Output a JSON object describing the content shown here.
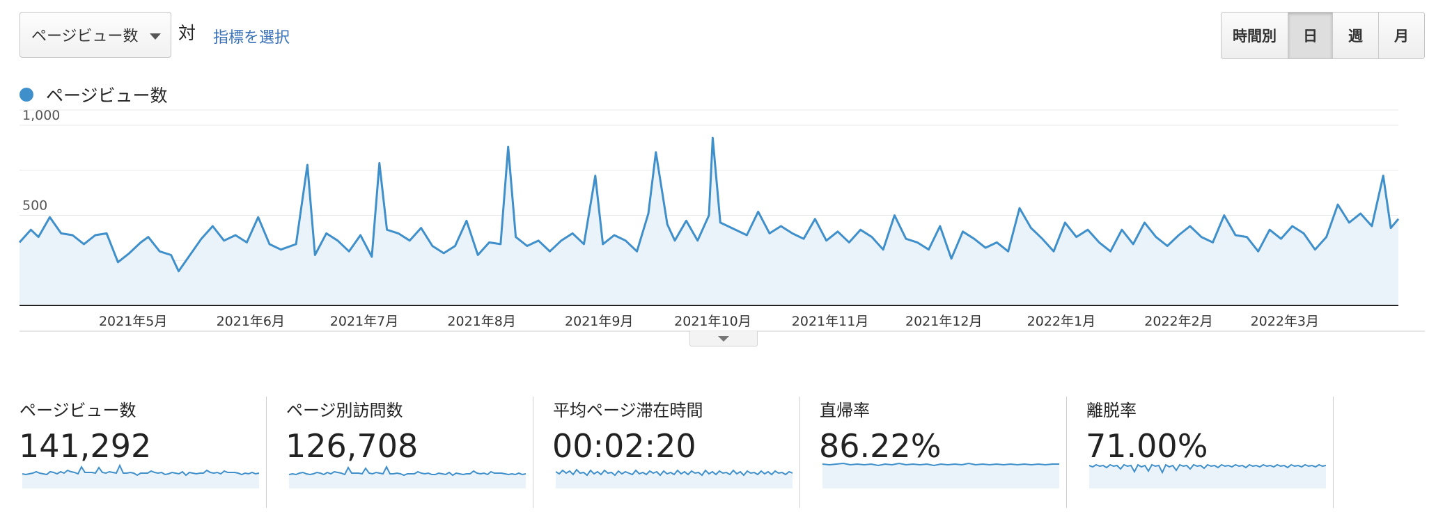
{
  "toolbar": {
    "metric_selector": {
      "value": "ページビュー数"
    },
    "versus_label": "対",
    "select_metric_link": "指標を選択",
    "granularity": [
      {
        "label": "時間別",
        "active": false
      },
      {
        "label": "日",
        "active": true
      },
      {
        "label": "週",
        "active": false
      },
      {
        "label": "月",
        "active": false
      }
    ]
  },
  "legend": {
    "label": "ページビュー数",
    "color": "#3f8fca"
  },
  "colors": {
    "line": "#3f8fca",
    "fill": "#eaf2fa",
    "grid": "#e8e8e8",
    "axis": "#222222"
  },
  "chart_data": {
    "type": "area",
    "series": [
      {
        "name": "ページビュー数"
      }
    ],
    "granularity": "daily",
    "x_range": [
      "2021-04-01",
      "2022-03-31"
    ],
    "x_tick_labels": [
      "2021年5月",
      "2021年6月",
      "2021年7月",
      "2021年8月",
      "2021年9月",
      "2021年10月",
      "2021年11月",
      "2021年12月",
      "2022年1月",
      "2022年2月",
      "2022年3月"
    ],
    "x_tick_dates": [
      "2021-05-01",
      "2021-06-01",
      "2021-07-01",
      "2021-08-01",
      "2021-09-01",
      "2021-10-01",
      "2021-11-01",
      "2021-12-01",
      "2022-01-01",
      "2022-02-01",
      "2022-03-01"
    ],
    "y_tick_labels": [
      "1,000",
      "500"
    ],
    "y_ticks": [
      1000,
      500
    ],
    "ylim": [
      0,
      1000
    ],
    "grid": true,
    "points": [
      [
        "2021-04-01",
        350
      ],
      [
        "2021-04-04",
        420
      ],
      [
        "2021-04-06",
        380
      ],
      [
        "2021-04-09",
        490
      ],
      [
        "2021-04-12",
        400
      ],
      [
        "2021-04-15",
        390
      ],
      [
        "2021-04-18",
        340
      ],
      [
        "2021-04-21",
        390
      ],
      [
        "2021-04-24",
        400
      ],
      [
        "2021-04-27",
        240
      ],
      [
        "2021-04-30",
        290
      ],
      [
        "2021-05-03",
        350
      ],
      [
        "2021-05-05",
        380
      ],
      [
        "2021-05-08",
        300
      ],
      [
        "2021-05-11",
        280
      ],
      [
        "2021-05-13",
        190
      ],
      [
        "2021-05-16",
        280
      ],
      [
        "2021-05-19",
        370
      ],
      [
        "2021-05-22",
        440
      ],
      [
        "2021-05-25",
        360
      ],
      [
        "2021-05-28",
        390
      ],
      [
        "2021-05-31",
        350
      ],
      [
        "2021-06-03",
        490
      ],
      [
        "2021-06-06",
        340
      ],
      [
        "2021-06-09",
        310
      ],
      [
        "2021-06-13",
        340
      ],
      [
        "2021-06-16",
        780
      ],
      [
        "2021-06-18",
        280
      ],
      [
        "2021-06-21",
        400
      ],
      [
        "2021-06-24",
        360
      ],
      [
        "2021-06-27",
        300
      ],
      [
        "2021-06-30",
        390
      ],
      [
        "2021-07-03",
        270
      ],
      [
        "2021-07-05",
        790
      ],
      [
        "2021-07-07",
        420
      ],
      [
        "2021-07-10",
        400
      ],
      [
        "2021-07-13",
        360
      ],
      [
        "2021-07-16",
        430
      ],
      [
        "2021-07-19",
        330
      ],
      [
        "2021-07-22",
        290
      ],
      [
        "2021-07-25",
        330
      ],
      [
        "2021-07-28",
        470
      ],
      [
        "2021-07-31",
        280
      ],
      [
        "2021-08-03",
        350
      ],
      [
        "2021-08-06",
        340
      ],
      [
        "2021-08-08",
        880
      ],
      [
        "2021-08-10",
        380
      ],
      [
        "2021-08-13",
        330
      ],
      [
        "2021-08-16",
        360
      ],
      [
        "2021-08-19",
        300
      ],
      [
        "2021-08-22",
        360
      ],
      [
        "2021-08-25",
        400
      ],
      [
        "2021-08-28",
        340
      ],
      [
        "2021-08-31",
        720
      ],
      [
        "2021-09-02",
        340
      ],
      [
        "2021-09-05",
        390
      ],
      [
        "2021-09-08",
        360
      ],
      [
        "2021-09-11",
        300
      ],
      [
        "2021-09-14",
        510
      ],
      [
        "2021-09-16",
        850
      ],
      [
        "2021-09-19",
        450
      ],
      [
        "2021-09-21",
        360
      ],
      [
        "2021-09-24",
        470
      ],
      [
        "2021-09-27",
        360
      ],
      [
        "2021-09-30",
        500
      ],
      [
        "2021-10-01",
        930
      ],
      [
        "2021-10-03",
        460
      ],
      [
        "2021-10-06",
        430
      ],
      [
        "2021-10-10",
        390
      ],
      [
        "2021-10-13",
        520
      ],
      [
        "2021-10-16",
        400
      ],
      [
        "2021-10-19",
        440
      ],
      [
        "2021-10-22",
        400
      ],
      [
        "2021-10-25",
        370
      ],
      [
        "2021-10-28",
        480
      ],
      [
        "2021-10-31",
        360
      ],
      [
        "2021-11-03",
        410
      ],
      [
        "2021-11-06",
        350
      ],
      [
        "2021-11-09",
        420
      ],
      [
        "2021-11-12",
        380
      ],
      [
        "2021-11-15",
        310
      ],
      [
        "2021-11-18",
        500
      ],
      [
        "2021-11-21",
        370
      ],
      [
        "2021-11-24",
        350
      ],
      [
        "2021-11-27",
        310
      ],
      [
        "2021-11-30",
        440
      ],
      [
        "2021-12-03",
        260
      ],
      [
        "2021-12-06",
        410
      ],
      [
        "2021-12-09",
        370
      ],
      [
        "2021-12-12",
        320
      ],
      [
        "2021-12-15",
        350
      ],
      [
        "2021-12-18",
        300
      ],
      [
        "2021-12-21",
        540
      ],
      [
        "2021-12-24",
        430
      ],
      [
        "2021-12-27",
        370
      ],
      [
        "2021-12-30",
        300
      ],
      [
        "2022-01-02",
        460
      ],
      [
        "2022-01-05",
        380
      ],
      [
        "2022-01-08",
        420
      ],
      [
        "2022-01-11",
        350
      ],
      [
        "2022-01-14",
        300
      ],
      [
        "2022-01-17",
        420
      ],
      [
        "2022-01-20",
        340
      ],
      [
        "2022-01-23",
        460
      ],
      [
        "2022-01-26",
        380
      ],
      [
        "2022-01-29",
        330
      ],
      [
        "2022-02-01",
        390
      ],
      [
        "2022-02-04",
        440
      ],
      [
        "2022-02-07",
        380
      ],
      [
        "2022-02-10",
        350
      ],
      [
        "2022-02-13",
        500
      ],
      [
        "2022-02-16",
        390
      ],
      [
        "2022-02-19",
        380
      ],
      [
        "2022-02-22",
        300
      ],
      [
        "2022-02-25",
        420
      ],
      [
        "2022-02-28",
        370
      ],
      [
        "2022-03-03",
        440
      ],
      [
        "2022-03-06",
        400
      ],
      [
        "2022-03-09",
        310
      ],
      [
        "2022-03-12",
        380
      ],
      [
        "2022-03-15",
        560
      ],
      [
        "2022-03-18",
        460
      ],
      [
        "2022-03-21",
        510
      ],
      [
        "2022-03-24",
        440
      ],
      [
        "2022-03-27",
        720
      ],
      [
        "2022-03-29",
        430
      ],
      [
        "2022-03-31",
        480
      ]
    ]
  },
  "scorecards": [
    {
      "label": "ページビュー数",
      "value": "141,292"
    },
    {
      "label": "ページ別訪問数",
      "value": "126,708"
    },
    {
      "label": "平均ページ滞在時間",
      "value": "00:02:20"
    },
    {
      "label": "直帰率",
      "value": "86.22%"
    },
    {
      "label": "離脱率",
      "value": "71.00%"
    }
  ]
}
